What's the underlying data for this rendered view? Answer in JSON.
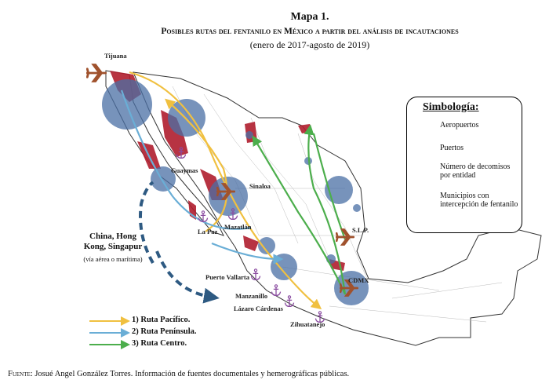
{
  "header": {
    "title": "Mapa 1.",
    "subtitle": "Posibles rutas del fentanilo en México a partir del análisis de incautaciones",
    "period": "(enero de 2017-agosto de 2019)"
  },
  "legend": {
    "title": "Simbología:",
    "items": [
      "Aeropuertos",
      "Puertos",
      "Número de decomisos por entidad",
      "Municipios con intercepción de fentanilo"
    ]
  },
  "places": [
    "Tijuana",
    "Guaymas",
    "Sinaloa",
    "La Paz",
    "Mazatlán",
    "S.L.P.",
    "Puerto Vallarta",
    "Manzanillo",
    "Lázaro Cárdenas",
    "CDMX",
    "Zihuatanejo"
  ],
  "origin": {
    "name": "China, Hong Kong, Singapur",
    "note": "(vía aérea o marítima)"
  },
  "routes": [
    "1) Ruta Pacífico.",
    "2) Ruta Península.",
    "3) Ruta Centro."
  ],
  "source": {
    "label": "Fuente:",
    "text": "Josué Angel González Torres. Información de fuentes documentales y hemerográficas públicas."
  }
}
